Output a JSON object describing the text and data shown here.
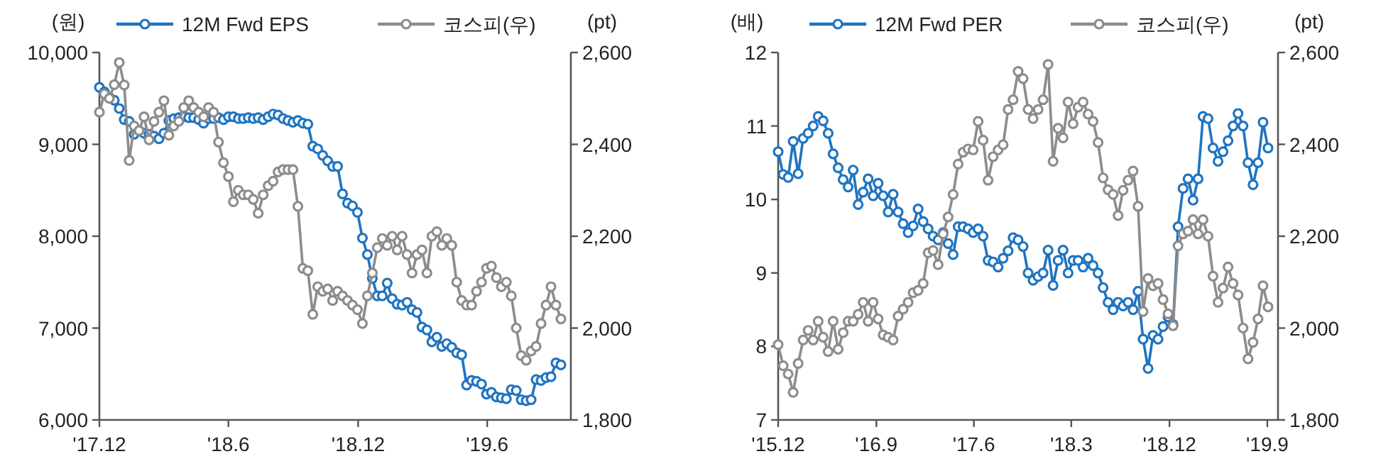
{
  "chart_data": [
    {
      "type": "line",
      "ylabel": "(원)",
      "y2label": "(pt)",
      "legend": "top",
      "marker": "circle",
      "x": [
        "2017-12-01",
        "2017-12-08",
        "2017-12-15",
        "2017-12-22",
        "2017-12-29",
        "2018-01-05",
        "2018-01-12",
        "2018-01-19",
        "2018-01-26",
        "2018-02-02",
        "2018-02-09",
        "2018-02-16",
        "2018-02-23",
        "2018-03-02",
        "2018-03-09",
        "2018-03-16",
        "2018-03-23",
        "2018-03-30",
        "2018-04-06",
        "2018-04-13",
        "2018-04-20",
        "2018-04-27",
        "2018-05-04",
        "2018-05-11",
        "2018-05-18",
        "2018-05-25",
        "2018-06-01",
        "2018-06-08",
        "2018-06-15",
        "2018-06-22",
        "2018-06-29",
        "2018-07-06",
        "2018-07-13",
        "2018-07-20",
        "2018-07-27",
        "2018-08-03",
        "2018-08-10",
        "2018-08-17",
        "2018-08-24",
        "2018-08-31",
        "2018-09-07",
        "2018-09-14",
        "2018-09-21",
        "2018-09-28",
        "2018-10-05",
        "2018-10-12",
        "2018-10-19",
        "2018-10-26",
        "2018-11-02",
        "2018-11-09",
        "2018-11-16",
        "2018-11-23",
        "2018-11-30",
        "2018-12-07",
        "2018-12-14",
        "2018-12-21",
        "2018-12-28",
        "2019-01-04",
        "2019-01-11",
        "2019-01-18",
        "2019-01-25",
        "2019-02-01",
        "2019-02-08",
        "2019-02-15",
        "2019-02-22",
        "2019-03-01",
        "2019-03-08",
        "2019-03-15",
        "2019-03-22",
        "2019-03-29",
        "2019-04-05",
        "2019-04-12",
        "2019-04-19",
        "2019-04-26",
        "2019-05-03",
        "2019-05-10",
        "2019-05-17",
        "2019-05-24",
        "2019-05-31",
        "2019-06-07",
        "2019-06-14",
        "2019-06-21",
        "2019-06-28",
        "2019-07-05",
        "2019-07-12",
        "2019-07-19",
        "2019-07-26",
        "2019-08-02",
        "2019-08-09",
        "2019-08-16",
        "2019-08-23",
        "2019-08-30",
        "2019-09-06",
        "2019-09-13"
      ],
      "xlim": [
        "2017-12-01",
        "2019-09-27"
      ],
      "xticks": [
        {
          "value": "2017-12",
          "label": "'17.12"
        },
        {
          "value": "2018-06",
          "label": "'18.6"
        },
        {
          "value": "2018-12",
          "label": "'18.12"
        },
        {
          "value": "2019-06",
          "label": "'19.6"
        }
      ],
      "ylim": [
        6000,
        10000
      ],
      "yticks": [
        {
          "value": 6000,
          "label": "6,000"
        },
        {
          "value": 7000,
          "label": "7,000"
        },
        {
          "value": 8000,
          "label": "8,000"
        },
        {
          "value": 9000,
          "label": "9,000"
        },
        {
          "value": 10000,
          "label": "10,000"
        }
      ],
      "y2lim": [
        1800,
        2600
      ],
      "y2ticks": [
        {
          "value": 1800,
          "label": "1,800"
        },
        {
          "value": 2000,
          "label": "2,000"
        },
        {
          "value": 2200,
          "label": "2,200"
        },
        {
          "value": 2400,
          "label": "2,400"
        },
        {
          "value": 2600,
          "label": "2,600"
        }
      ],
      "series": [
        {
          "name": "12M Fwd EPS",
          "color": "#1f74c1",
          "values": [
            9620,
            9570,
            9510,
            9480,
            9390,
            9270,
            9250,
            9110,
            9150,
            9120,
            9110,
            9090,
            9060,
            9120,
            9260,
            9280,
            9290,
            9300,
            9290,
            9290,
            9270,
            9230,
            9280,
            9280,
            9290,
            9270,
            9300,
            9300,
            9280,
            9280,
            9290,
            9280,
            9290,
            9270,
            9300,
            9330,
            9320,
            9280,
            9260,
            9240,
            9260,
            9230,
            9220,
            8980,
            8950,
            8880,
            8820,
            8760,
            8760,
            8460,
            8360,
            8330,
            8260,
            7980,
            7800,
            7540,
            7350,
            7350,
            7490,
            7320,
            7260,
            7250,
            7280,
            7200,
            7170,
            7010,
            6980,
            6850,
            6900,
            6800,
            6830,
            6790,
            6730,
            6710,
            6380,
            6430,
            6420,
            6390,
            6280,
            6300,
            6250,
            6240,
            6230,
            6330,
            6320,
            6220,
            6210,
            6220,
            6440,
            6430,
            6460,
            6470,
            6620,
            6600
          ]
        },
        {
          "name": "코스피(우)",
          "color": "#8c8c8c",
          "axis": "y2",
          "values": [
            2470,
            2510,
            2500,
            2530,
            2578,
            2529,
            2365,
            2440,
            2430,
            2460,
            2410,
            2450,
            2470,
            2495,
            2420,
            2440,
            2450,
            2480,
            2495,
            2480,
            2470,
            2460,
            2480,
            2470,
            2405,
            2360,
            2330,
            2275,
            2300,
            2290,
            2290,
            2280,
            2250,
            2290,
            2310,
            2320,
            2340,
            2345,
            2345,
            2345,
            2265,
            2130,
            2125,
            2030,
            2090,
            2080,
            2085,
            2060,
            2080,
            2070,
            2060,
            2050,
            2040,
            2010,
            2070,
            2120,
            2175,
            2195,
            2180,
            2200,
            2170,
            2200,
            2160,
            2120,
            2160,
            2170,
            2120,
            2200,
            2210,
            2180,
            2195,
            2180,
            2100,
            2060,
            2050,
            2050,
            2080,
            2100,
            2130,
            2135,
            2110,
            2090,
            2100,
            2070,
            2000,
            1940,
            1930,
            1950,
            1960,
            2010,
            2050,
            2090,
            2050,
            2020
          ]
        }
      ]
    },
    {
      "type": "line",
      "ylabel": "(배)",
      "y2label": "(pt)",
      "legend": "top",
      "marker": "circle",
      "x": [
        "2015-12-01",
        "2015-12-15",
        "2015-12-29",
        "2016-01-12",
        "2016-01-26",
        "2016-02-09",
        "2016-02-23",
        "2016-03-08",
        "2016-03-22",
        "2016-04-05",
        "2016-04-19",
        "2016-05-03",
        "2016-05-17",
        "2016-05-31",
        "2016-06-14",
        "2016-06-28",
        "2016-07-12",
        "2016-07-26",
        "2016-08-09",
        "2016-08-23",
        "2016-09-06",
        "2016-09-20",
        "2016-10-04",
        "2016-10-18",
        "2016-11-01",
        "2016-11-15",
        "2016-11-29",
        "2016-12-13",
        "2016-12-27",
        "2017-01-10",
        "2017-01-24",
        "2017-02-07",
        "2017-02-21",
        "2017-03-07",
        "2017-03-21",
        "2017-04-04",
        "2017-04-18",
        "2017-05-02",
        "2017-05-16",
        "2017-05-30",
        "2017-06-13",
        "2017-06-27",
        "2017-07-11",
        "2017-07-25",
        "2017-08-08",
        "2017-08-22",
        "2017-09-05",
        "2017-09-19",
        "2017-10-03",
        "2017-10-17",
        "2017-10-31",
        "2017-11-14",
        "2017-11-28",
        "2017-12-12",
        "2017-12-26",
        "2018-01-09",
        "2018-01-23",
        "2018-02-06",
        "2018-02-20",
        "2018-03-06",
        "2018-03-20",
        "2018-04-03",
        "2018-04-17",
        "2018-05-01",
        "2018-05-15",
        "2018-05-29",
        "2018-06-12",
        "2018-06-26",
        "2018-07-10",
        "2018-07-24",
        "2018-08-07",
        "2018-08-21",
        "2018-09-04",
        "2018-09-18",
        "2018-10-02",
        "2018-10-16",
        "2018-10-30",
        "2018-11-13",
        "2018-11-27",
        "2018-12-11",
        "2018-12-25",
        "2019-01-08",
        "2019-01-22",
        "2019-02-05",
        "2019-02-19",
        "2019-03-05",
        "2019-03-19",
        "2019-04-02",
        "2019-04-16",
        "2019-04-30",
        "2019-05-14",
        "2019-05-28",
        "2019-06-11",
        "2019-06-25",
        "2019-07-09",
        "2019-07-23",
        "2019-08-06",
        "2019-08-20",
        "2019-09-03"
      ],
      "xlim": [
        "2015-12-01",
        "2019-10-01"
      ],
      "xticks": [
        {
          "value": "2015-12",
          "label": "'15.12"
        },
        {
          "value": "2016-09",
          "label": "'16.9"
        },
        {
          "value": "2017-06",
          "label": "'17.6"
        },
        {
          "value": "2018-03",
          "label": "'18.3"
        },
        {
          "value": "2018-12",
          "label": "'18.12"
        },
        {
          "value": "2019-09",
          "label": "'19.9"
        }
      ],
      "ylim": [
        7,
        12
      ],
      "yticks": [
        7,
        8,
        9,
        10,
        11,
        12
      ],
      "y2lim": [
        1800,
        2600
      ],
      "y2ticks": [
        {
          "value": 1800,
          "label": "1,800"
        },
        {
          "value": 2000,
          "label": "2,000"
        },
        {
          "value": 2200,
          "label": "2,200"
        },
        {
          "value": 2400,
          "label": "2,400"
        },
        {
          "value": 2600,
          "label": "2,600"
        }
      ],
      "series": [
        {
          "name": "12M Fwd PER",
          "color": "#1f74c1",
          "values": [
            10.65,
            10.34,
            10.3,
            10.79,
            10.35,
            10.83,
            10.9,
            11.0,
            11.13,
            11.07,
            10.9,
            10.62,
            10.43,
            10.27,
            10.17,
            10.4,
            9.93,
            10.1,
            10.28,
            10.05,
            10.22,
            10.05,
            9.83,
            10.07,
            9.83,
            9.67,
            9.55,
            9.64,
            9.87,
            9.7,
            9.6,
            9.5,
            9.45,
            9.55,
            9.4,
            9.25,
            9.63,
            9.63,
            9.6,
            9.55,
            9.6,
            9.5,
            9.17,
            9.15,
            9.08,
            9.2,
            9.3,
            9.48,
            9.45,
            9.36,
            9.0,
            8.9,
            8.95,
            9.0,
            9.31,
            8.83,
            9.17,
            9.31,
            9.0,
            9.17,
            9.17,
            9.08,
            9.2,
            9.1,
            9.0,
            8.8,
            8.6,
            8.5,
            8.6,
            8.55,
            8.6,
            8.5,
            8.75,
            8.1,
            7.7,
            8.15,
            8.1,
            8.27,
            8.4,
            8.3,
            9.63,
            10.15,
            10.28,
            9.99,
            10.28,
            11.13,
            11.1,
            10.7,
            10.52,
            10.65,
            10.8,
            11.0,
            11.17,
            11.0,
            10.5,
            10.2,
            10.5,
            11.05,
            10.7
          ]
        },
        {
          "name": "코스피(우)",
          "color": "#8c8c8c",
          "axis": "y2",
          "values": [
            1964,
            1918,
            1900,
            1860,
            1923,
            1974,
            1995,
            1974,
            2015,
            1980,
            1949,
            2015,
            1954,
            1990,
            2015,
            2015,
            2030,
            2056,
            2015,
            2056,
            2020,
            1985,
            1980,
            1974,
            2026,
            2041,
            2056,
            2077,
            2082,
            2097,
            2164,
            2169,
            2138,
            2205,
            2242,
            2291,
            2357,
            2383,
            2390,
            2388,
            2450,
            2409,
            2322,
            2373,
            2388,
            2399,
            2476,
            2497,
            2559,
            2543,
            2476,
            2456,
            2476,
            2497,
            2574,
            2363,
            2435,
            2414,
            2492,
            2445,
            2481,
            2492,
            2466,
            2450,
            2404,
            2327,
            2301,
            2291,
            2245,
            2300,
            2322,
            2342,
            2265,
            2036,
            2108,
            2092,
            2097,
            2062,
            2031,
            2005,
            2179,
            2205,
            2211,
            2236,
            2205,
            2236,
            2200,
            2113,
            2056,
            2087,
            2133,
            2097,
            2072,
            2000,
            1933,
            1969,
            2020,
            2092,
            2046
          ]
        }
      ]
    }
  ]
}
